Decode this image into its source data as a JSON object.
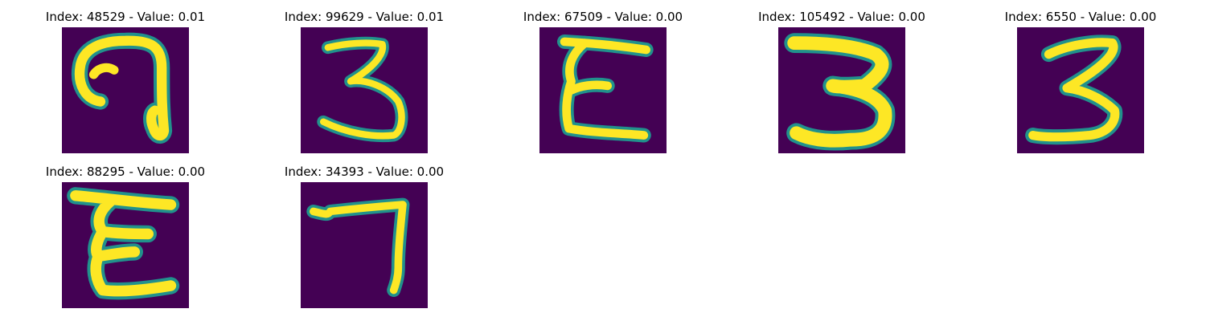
{
  "colors": {
    "background": "#440154",
    "mid": "#21918c",
    "high": "#fde725"
  },
  "panels": [
    {
      "title": "Index: 48529 - Value: 0.01",
      "digit_shape": "hook"
    },
    {
      "title": "Index: 99629 - Value: 0.01",
      "digit_shape": "three-thin"
    },
    {
      "title": "Index: 67509 - Value: 0.00",
      "digit_shape": "epsilon"
    },
    {
      "title": "Index: 105492 - Value: 0.00",
      "digit_shape": "three-bold"
    },
    {
      "title": "Index: 6550 - Value: 0.00",
      "digit_shape": "three-slanted"
    },
    {
      "title": "Index: 88295 - Value: 0.00",
      "digit_shape": "epsilon-bold"
    },
    {
      "title": "Index: 34393 - Value: 0.00",
      "digit_shape": "seven"
    }
  ]
}
